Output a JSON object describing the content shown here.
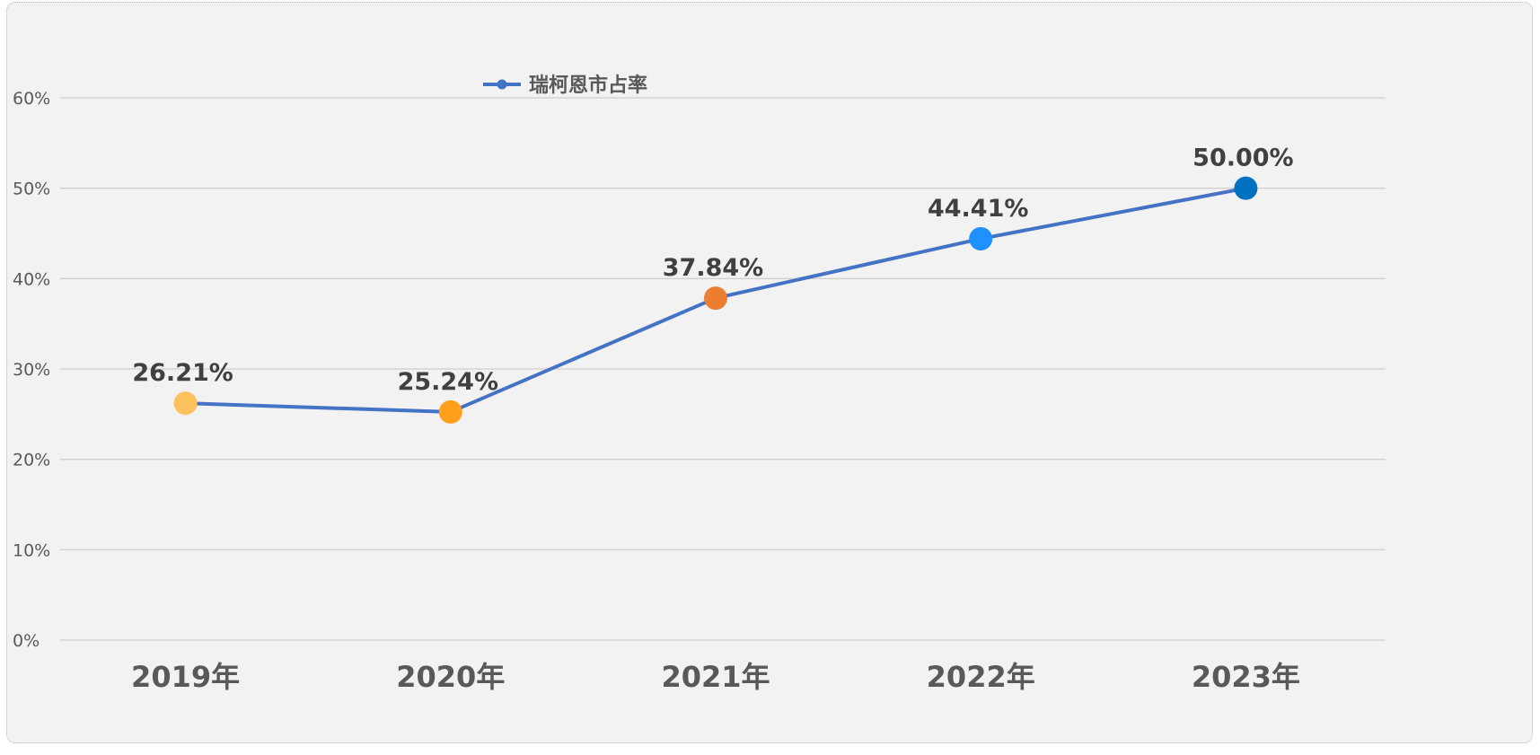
{
  "chart_data": {
    "type": "line",
    "categories": [
      "2019年",
      "2020年",
      "2021年",
      "2022年",
      "2023年"
    ],
    "series": [
      {
        "name": "瑞柯恩市占率",
        "values": [
          26.21,
          25.24,
          37.84,
          44.41,
          50.0
        ],
        "data_labels": [
          "26.21%",
          "25.24%",
          "37.84%",
          "44.41%",
          "50.00%"
        ],
        "line_color": "#4472c4",
        "marker_colors": [
          "#ffc15e",
          "#ff9f1a",
          "#ed7d31",
          "#1e90ff",
          "#0070c0"
        ]
      }
    ],
    "y_ticks": [
      "0%",
      "10%",
      "20%",
      "30%",
      "40%",
      "50%",
      "60%"
    ],
    "ylim": [
      0,
      60
    ],
    "grid": true,
    "legend": "top-center",
    "colors": {
      "background": "#f2f2f2",
      "gridline": "#d0d0d0",
      "axis_text": "#595959",
      "data_label_text": "#404040"
    }
  }
}
